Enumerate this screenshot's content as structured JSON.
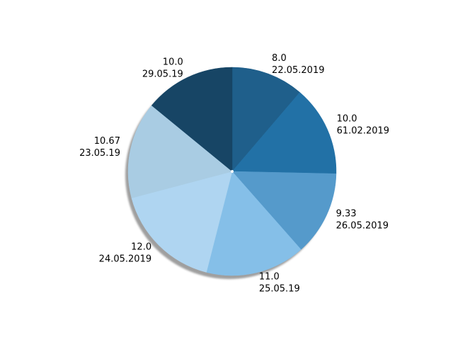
{
  "chart_data": {
    "type": "pie",
    "title": "",
    "start_angle_deg": 90,
    "direction": "clockwise",
    "shadow": true,
    "slices": [
      {
        "value": 8.0,
        "value_text": "8.0",
        "date": "22.05.2019",
        "color": "#1f5f8b"
      },
      {
        "value": 10.0,
        "value_text": "10.0",
        "date": "61.02.2019",
        "color": "#2271a6"
      },
      {
        "value": 9.33,
        "value_text": "9.33",
        "date": "26.05.2019",
        "color": "#559acb"
      },
      {
        "value": 11.0,
        "value_text": "11.0",
        "date": "25.05.19",
        "color": "#85bfe8"
      },
      {
        "value": 12.0,
        "value_text": "12.0",
        "date": "24.05.2019",
        "color": "#afd5f1"
      },
      {
        "value": 10.67,
        "value_text": "10.67",
        "date": "23.05.19",
        "color": "#a9cce3"
      },
      {
        "value": 10.0,
        "value_text": "10.0",
        "date": "29.05.19",
        "color": "#174565"
      }
    ]
  }
}
